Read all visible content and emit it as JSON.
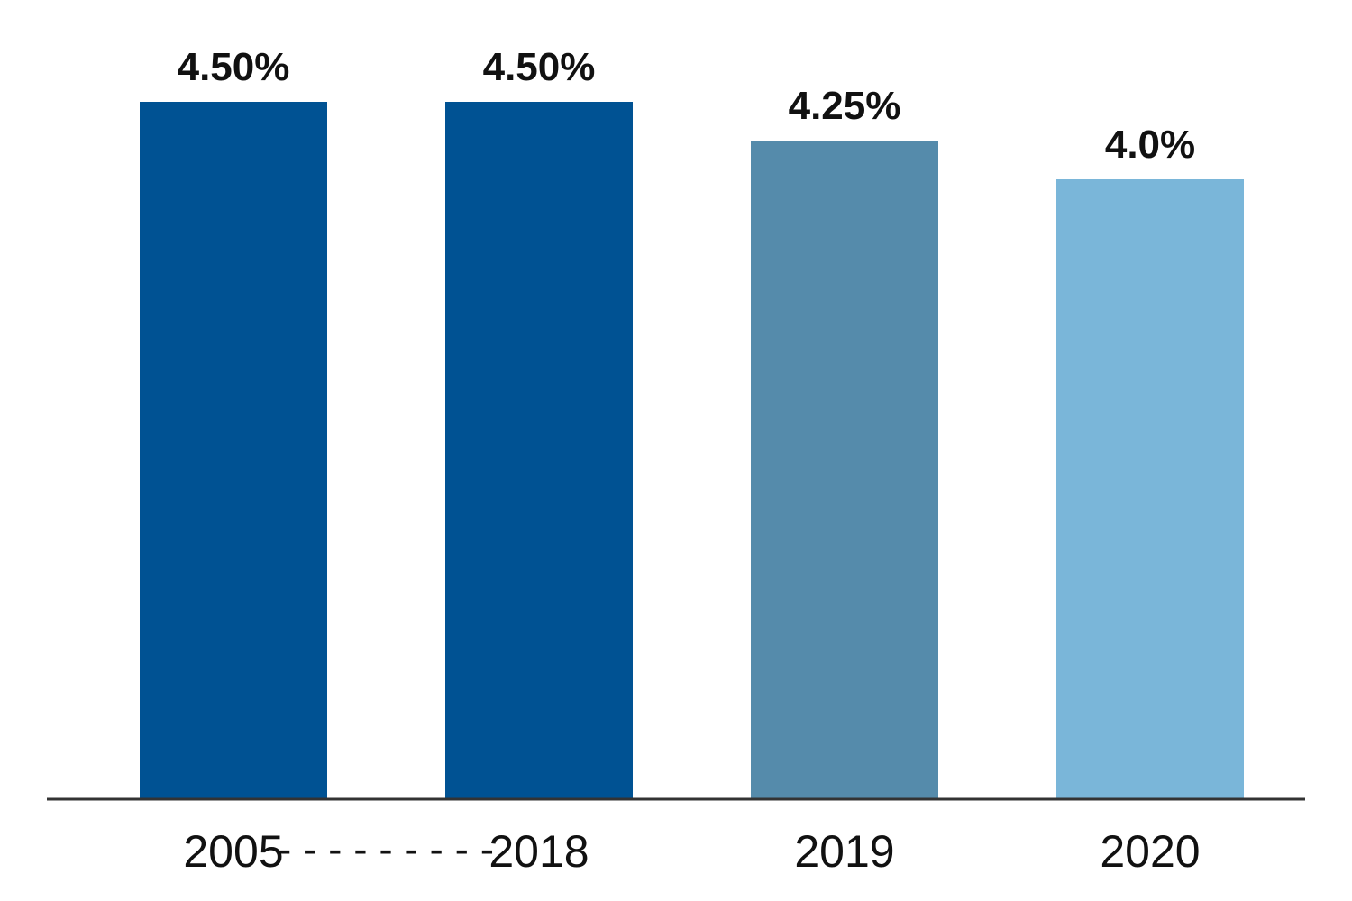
{
  "chart_data": {
    "type": "bar",
    "categories": [
      "2005",
      "2018",
      "2019",
      "2020"
    ],
    "values": [
      4.5,
      4.5,
      4.25,
      4.0
    ],
    "data_labels": [
      "4.50%",
      "4.50%",
      "4.25%",
      "4.0%"
    ],
    "colors": [
      "#005293",
      "#005293",
      "#558bab",
      "#7ab6d9"
    ],
    "range_connector": "- - - - - - - - -",
    "axis_color": "#333333",
    "title": "",
    "xlabel": "",
    "ylabel": "",
    "ylim": [
      0,
      5
    ],
    "grid": false
  }
}
